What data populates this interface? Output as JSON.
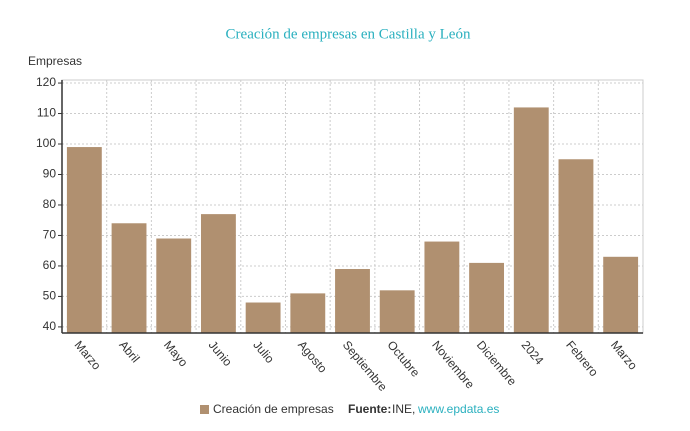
{
  "chart_data": {
    "type": "bar",
    "title": "Creación de empresas en Castilla y León",
    "y_label": "Empresas",
    "categories": [
      "Marzo",
      "Abril",
      "Mayo",
      "Junio",
      "Julio",
      "Agosto",
      "Septiembre",
      "Octubre",
      "Noviembre",
      "Diciembre",
      "2024",
      "Febrero",
      "Marzo"
    ],
    "series": [
      {
        "name": "Creación de empresas",
        "color": "#b09070",
        "values": [
          99,
          74,
          69,
          77,
          48,
          51,
          59,
          52,
          68,
          61,
          112,
          95,
          63
        ]
      }
    ],
    "ylim": [
      38,
      121
    ],
    "yticks": [
      40,
      50,
      60,
      70,
      80,
      90,
      100,
      110,
      120
    ],
    "grid": true,
    "source_label": "Fuente:",
    "source_name": "INE,",
    "source_url": "www.epdata.es"
  }
}
